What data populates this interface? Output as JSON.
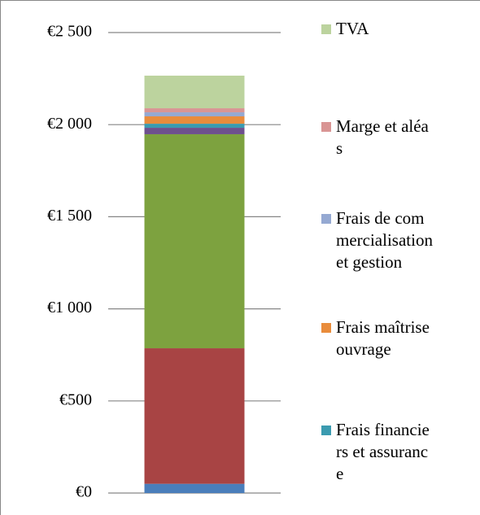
{
  "chart_data": {
    "type": "bar",
    "stacked": true,
    "categories": [
      null
    ],
    "series": [
      {
        "color": "#4a7ebb",
        "values": [
          50
        ]
      },
      {
        "color": "#a84444",
        "values": [
          736
        ]
      },
      {
        "color": "#7da23f",
        "values": [
          1162
        ]
      },
      {
        "color": "#6e508e",
        "values": [
          35
        ]
      },
      {
        "name": "Frais financiers et assurance",
        "color": "#3b9bb0",
        "values": [
          22
        ]
      },
      {
        "name": "Frais maîtrise ouvrage",
        "color": "#e98c3c",
        "values": [
          40
        ]
      },
      {
        "name": "Frais de commercialisation et gestion",
        "color": "#95a9d2",
        "values": [
          22
        ]
      },
      {
        "name": "Marge et aléas",
        "color": "#d99594",
        "values": [
          22
        ]
      },
      {
        "name": "TVA",
        "color": "#bcd39e",
        "values": [
          177
        ]
      }
    ],
    "ylim": [
      0,
      2500
    ],
    "yticks": [
      {
        "value": 0,
        "label": "€0"
      },
      {
        "value": 500,
        "label": "€500"
      },
      {
        "value": 1000,
        "label": "€1 000"
      },
      {
        "value": 1500,
        "label": "€1 500"
      },
      {
        "value": 2000,
        "label": "€2 000"
      },
      {
        "value": 2500,
        "label": "€2 500"
      }
    ],
    "grid": true
  }
}
